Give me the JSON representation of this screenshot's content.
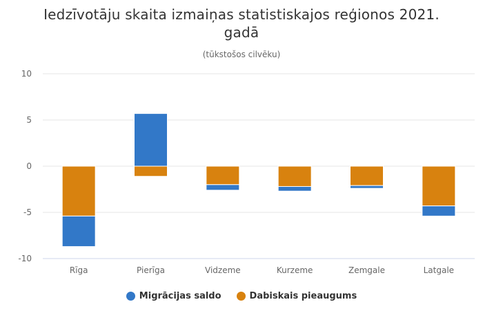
{
  "chart_data": {
    "type": "bar",
    "stacked": true,
    "title": "Iedzīvotāju skaita izmaiņas statistiskajos reģionos 2021. gadā",
    "subtitle": "(tūkstošos cilvēku)",
    "categories": [
      "Rīga",
      "Pierīga",
      "Vidzeme",
      "Kurzeme",
      "Zemgale",
      "Latgale"
    ],
    "series": [
      {
        "name": "Migrācijas saldo",
        "color": "#3278c8",
        "values": [
          -3.3,
          5.7,
          -0.6,
          -0.5,
          -0.3,
          -1.1
        ]
      },
      {
        "name": "Dabiskais pieaugums",
        "color": "#d8820f",
        "values": [
          -5.4,
          -1.1,
          -2.0,
          -2.2,
          -2.1,
          -4.3
        ]
      }
    ],
    "ylim": [
      -10,
      10
    ],
    "yticks": [
      -10,
      -5,
      0,
      5,
      10
    ],
    "grid": true,
    "legend_position": "bottom"
  }
}
